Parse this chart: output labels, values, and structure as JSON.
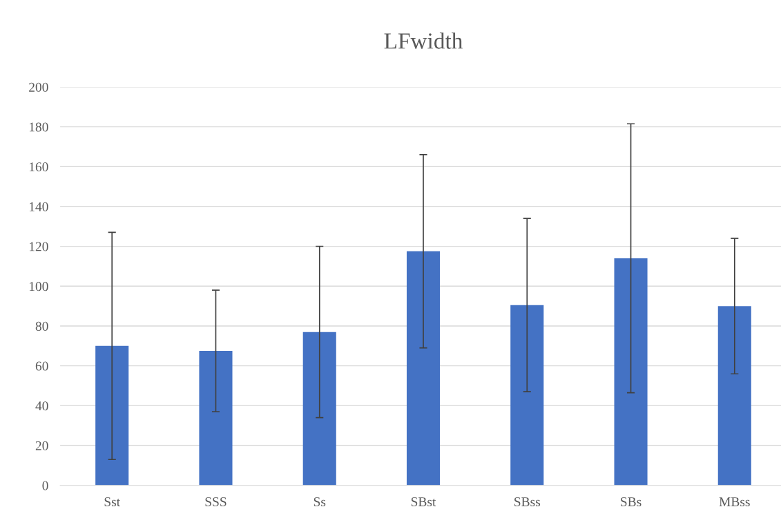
{
  "chart_data": {
    "type": "bar",
    "title": "LFwidth",
    "categories": [
      "Sst",
      "SSS",
      "Ss",
      "SBst",
      "SBss",
      "SBs",
      "MBss"
    ],
    "values": [
      70,
      67.5,
      77,
      117.5,
      90.5,
      114,
      90
    ],
    "errors": [
      57,
      30.5,
      43,
      48.5,
      43.5,
      67.5,
      34
    ],
    "color": "#4472c4",
    "ylim": [
      0,
      200
    ],
    "yticks": [
      0,
      20,
      40,
      60,
      80,
      100,
      120,
      140,
      160,
      180,
      200
    ],
    "grid": "y"
  }
}
